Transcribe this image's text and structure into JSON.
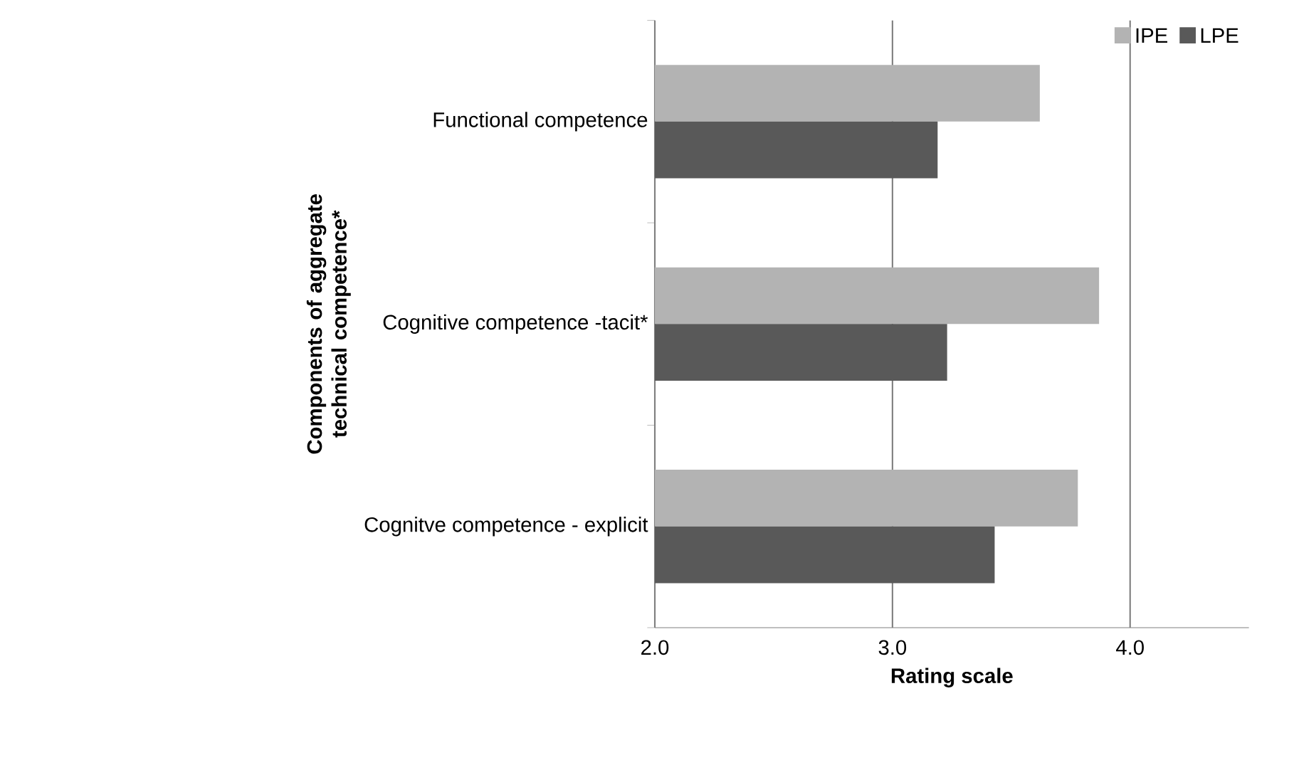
{
  "chart_data": {
    "type": "bar",
    "orientation": "horizontal",
    "xlabel": "Rating scale",
    "ylabel": "Components of aggregate technical competence*",
    "categories": [
      "Functional competence",
      "Cognitive competence -tacit*",
      "Cognitve competence - explicit"
    ],
    "series": [
      {
        "name": "IPE",
        "color": "#b3b3b3",
        "values": [
          3.62,
          3.87,
          3.78
        ]
      },
      {
        "name": "LPE",
        "color": "#595959",
        "values": [
          3.19,
          3.23,
          3.43
        ]
      }
    ],
    "xlim": [
      2.0,
      4.5
    ],
    "xticks": [
      {
        "value": 2.0,
        "label": "2.0"
      },
      {
        "value": 3.0,
        "label": "3.0"
      },
      {
        "value": 4.0,
        "label": "4.0"
      }
    ],
    "grid": "x",
    "legend": "top right"
  }
}
